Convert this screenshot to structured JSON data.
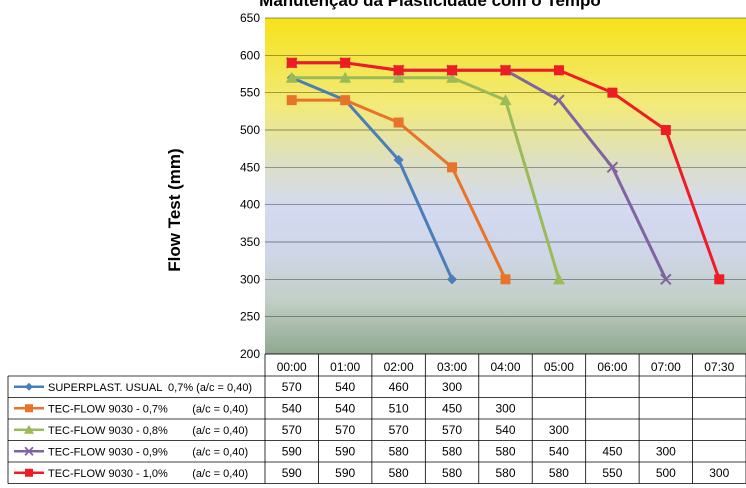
{
  "chart_data": {
    "type": "line",
    "title": "Manutenção da Plasticidade com o Tempo",
    "ylabel": "Flow Test (mm)",
    "xlabel": "",
    "ylim": [
      200,
      650
    ],
    "yticks": [
      "200",
      "250",
      "300",
      "350",
      "400",
      "450",
      "500",
      "550",
      "600",
      "650"
    ],
    "categories": [
      "00:00",
      "01:00",
      "02:00",
      "03:00",
      "04:00",
      "05:00",
      "06:00",
      "07:00",
      "07:30"
    ],
    "legend_position": "bottom data table",
    "grid": true,
    "series": [
      {
        "name": "SUPERPLAST. USUAL  0,7% (a/c = 0,40)",
        "color": "#4a7ebb",
        "marker": "diamond",
        "values": [
          570,
          540,
          460,
          300,
          null,
          null,
          null,
          null,
          null
        ],
        "table": [
          "570",
          "540",
          "460",
          "300",
          "",
          "",
          "",
          "",
          ""
        ]
      },
      {
        "name": "TEC-FLOW 9030 - 0,7%        (a/c = 0,40)",
        "color": "#e8742a",
        "marker": "square",
        "values": [
          540,
          540,
          510,
          450,
          300,
          null,
          null,
          null,
          null
        ],
        "table": [
          "540",
          "540",
          "510",
          "450",
          "300",
          "",
          "",
          "",
          ""
        ]
      },
      {
        "name": "TEC-FLOW 9030 - 0,8%        (a/c = 0,40)",
        "color": "#9bbb59",
        "marker": "triangle",
        "values": [
          570,
          570,
          570,
          570,
          540,
          300,
          null,
          null,
          null
        ],
        "table": [
          "570",
          "570",
          "570",
          "570",
          "540",
          "300",
          "",
          "",
          ""
        ]
      },
      {
        "name": "TEC-FLOW 9030 - 0,9%        (a/c = 0,40)",
        "color": "#8064a2",
        "marker": "x",
        "values": [
          590,
          590,
          580,
          580,
          580,
          540,
          450,
          300,
          null
        ],
        "table": [
          "590",
          "590",
          "580",
          "580",
          "580",
          "540",
          "450",
          "300",
          ""
        ]
      },
      {
        "name": "TEC-FLOW 9030 - 1,0%        (a/c = 0,40)",
        "color": "#ee1c25",
        "marker": "square",
        "values": [
          590,
          590,
          580,
          580,
          580,
          580,
          550,
          500,
          300
        ],
        "table": [
          "590",
          "590",
          "580",
          "580",
          "580",
          "580",
          "550",
          "500",
          "300"
        ]
      }
    ]
  }
}
